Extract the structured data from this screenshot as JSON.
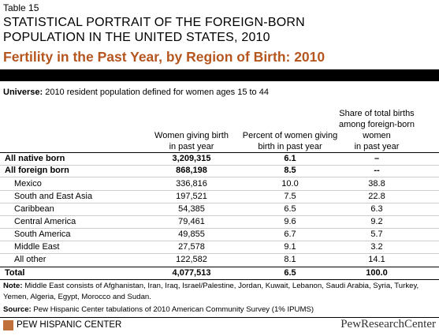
{
  "header": {
    "label": "Table 15",
    "title_lines": [
      "STATISTICAL PORTRAIT OF THE FOREIGN-BORN",
      "POPULATION IN THE UNITED STATES, 2010"
    ],
    "subtitle": "Fertility in the Past Year, by Region of Birth: 2010"
  },
  "universe": {
    "label": "Universe:",
    "text": "2010 resident population defined for women ages 15 to 44"
  },
  "table": {
    "columns": [
      [
        "Women giving birth",
        "in past year"
      ],
      [
        "Percent of women giving",
        "birth in past year"
      ],
      [
        "Share of total births",
        "among foreign-born",
        "women",
        "in past year"
      ]
    ],
    "rows": [
      {
        "cells": [
          "All native born",
          "3,209,315",
          "6.1",
          "–"
        ],
        "bold": true
      },
      {
        "cells": [
          "All foreign born",
          "868,198",
          "8.5",
          "--"
        ],
        "bold": true
      },
      {
        "cells": [
          "Mexico",
          "336,816",
          "10.0",
          "38.8"
        ],
        "bold": false
      },
      {
        "cells": [
          "South and East Asia",
          "197,521",
          "7.5",
          "22.8"
        ],
        "bold": false
      },
      {
        "cells": [
          "Caribbean",
          "54,385",
          "6.5",
          "6.3"
        ],
        "bold": false
      },
      {
        "cells": [
          "Central America",
          "79,461",
          "9.6",
          "9.2"
        ],
        "bold": false
      },
      {
        "cells": [
          "South America",
          "49,855",
          "6.7",
          "5.7"
        ],
        "bold": false
      },
      {
        "cells": [
          "Middle East",
          "27,578",
          "9.1",
          "3.2"
        ],
        "bold": false
      },
      {
        "cells": [
          "All other",
          "122,582",
          "8.1",
          "14.1"
        ],
        "bold": false
      },
      {
        "cells": [
          "Total",
          "4,077,513",
          "6.5",
          "100.0"
        ],
        "bold": true
      }
    ]
  },
  "note": {
    "label": "Note:",
    "text": "Middle East consists of Afghanistan, Iran, Iraq, Israel/Palestine, Jordan, Kuwait, Lebanon, Saudi Arabia, Syria, Turkey, Yemen, Algeria, Egypt, Morocco and Sudan."
  },
  "source": {
    "label": "Source:",
    "text": "Pew Hispanic Center tabulations of 2010 American Community Survey (1% IPUMS)"
  },
  "footer": {
    "left": "PEW HISPANIC CENTER",
    "right": "PewResearchCenter"
  }
}
